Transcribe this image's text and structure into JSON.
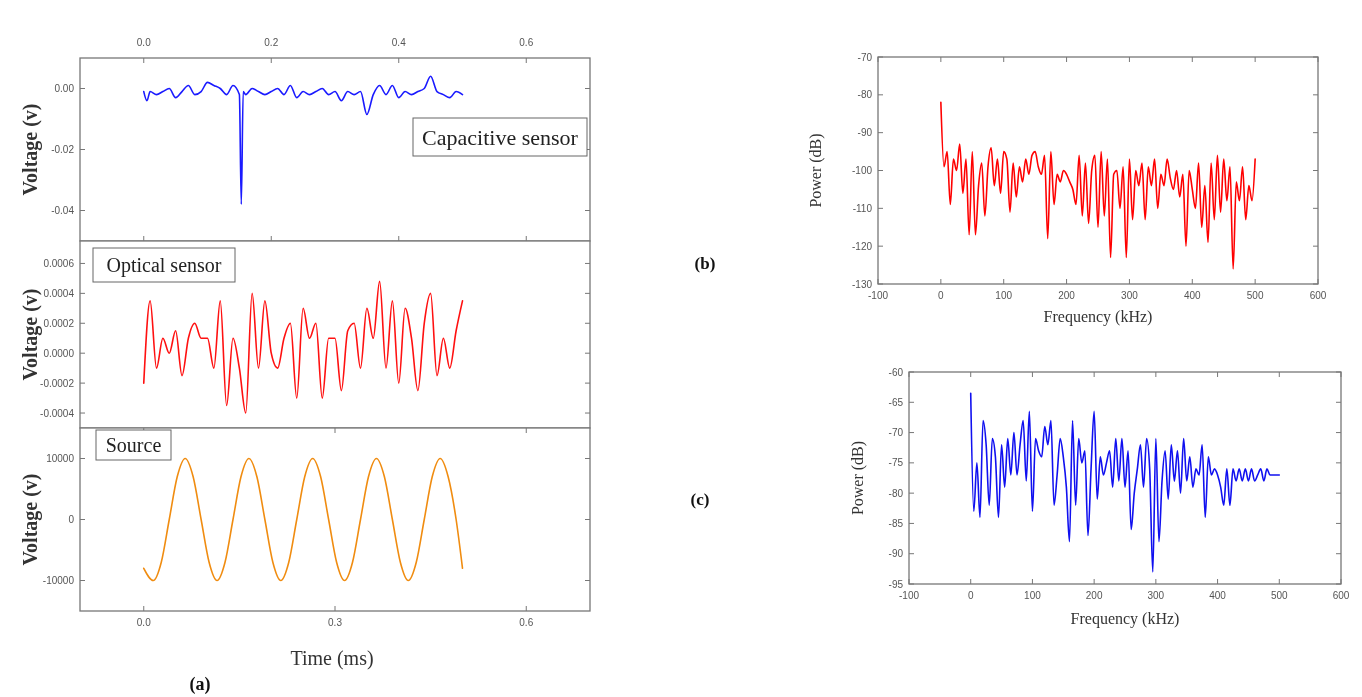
{
  "chart_data": [
    {
      "type": "line",
      "ylabel": "Voltage (v)",
      "xlim": [
        -0.1,
        0.7
      ],
      "ylim": [
        -0.05,
        0.01
      ],
      "tick_labels": "y",
      "x2lim": [
        -0.1,
        0.7
      ],
      "x2ticks": [
        {
          "value": 0,
          "label": "0.0"
        },
        {
          "value": 0.2,
          "label": "0.2"
        },
        {
          "value": 0.4,
          "label": "0.4"
        },
        {
          "value": 0.6,
          "label": "0.6"
        }
      ],
      "yticks": [
        {
          "value": 0,
          "label": "0.00"
        },
        {
          "value": -0.02,
          "label": "-0.02"
        },
        {
          "value": -0.04,
          "label": "-0.04"
        }
      ],
      "annotations": [
        "Capacitive sensor"
      ],
      "series": [
        {
          "color": "#1a1aff",
          "x": [
            0,
            0.005,
            0.01,
            0.02,
            0.03,
            0.04,
            0.05,
            0.06,
            0.07,
            0.08,
            0.09,
            0.1,
            0.11,
            0.12,
            0.13,
            0.14,
            0.15,
            0.153,
            0.156,
            0.16,
            0.17,
            0.18,
            0.19,
            0.2,
            0.21,
            0.22,
            0.23,
            0.24,
            0.25,
            0.26,
            0.27,
            0.28,
            0.29,
            0.3,
            0.31,
            0.32,
            0.33,
            0.34,
            0.35,
            0.36,
            0.37,
            0.38,
            0.39,
            0.4,
            0.41,
            0.42,
            0.43,
            0.44,
            0.45,
            0.46,
            0.47,
            0.48,
            0.49,
            0.5
          ],
          "values": [
            -0.001,
            -0.004,
            -0.001,
            -0.002,
            -0.001,
            0,
            -0.003,
            -0.001,
            0.001,
            -0.002,
            -0.001,
            0.002,
            0.001,
            0,
            -0.002,
            0.001,
            -0.002,
            -0.038,
            -0.001,
            -0.002,
            0,
            -0.001,
            -0.002,
            -0.001,
            0,
            -0.002,
            0.001,
            -0.003,
            -0.001,
            -0.002,
            -0.001,
            0,
            -0.002,
            -0.001,
            -0.004,
            -0.001,
            -0.002,
            -0.001,
            -0.0085,
            -0.002,
            0.001,
            -0.002,
            0.001,
            -0.003,
            -0.001,
            -0.002,
            -0.001,
            0,
            0.004,
            -0.001,
            -0.002,
            -0.003,
            -0.001,
            -0.002
          ]
        }
      ]
    },
    {
      "type": "line",
      "ylabel": "Voltage (v)",
      "xlim": [
        -0.1,
        0.7
      ],
      "ylim": [
        -0.0005,
        0.00075
      ],
      "tick_labels": "y",
      "yticks": [
        {
          "value": 0.0006,
          "label": "0.0006"
        },
        {
          "value": 0.0004,
          "label": "0.0004"
        },
        {
          "value": 0.0002,
          "label": "0.0002"
        },
        {
          "value": 0,
          "label": "0.0000"
        },
        {
          "value": -0.0002,
          "label": "-0.0002"
        },
        {
          "value": -0.0004,
          "label": "-0.0004"
        }
      ],
      "annotations": [
        "Optical sensor"
      ],
      "series": [
        {
          "color": "#ff1010",
          "x": [
            0,
            0.01,
            0.02,
            0.03,
            0.04,
            0.05,
            0.06,
            0.07,
            0.08,
            0.09,
            0.1,
            0.11,
            0.12,
            0.13,
            0.14,
            0.15,
            0.16,
            0.17,
            0.18,
            0.19,
            0.2,
            0.21,
            0.22,
            0.23,
            0.24,
            0.25,
            0.26,
            0.27,
            0.28,
            0.29,
            0.3,
            0.31,
            0.32,
            0.33,
            0.34,
            0.35,
            0.36,
            0.37,
            0.38,
            0.39,
            0.4,
            0.41,
            0.42,
            0.43,
            0.44,
            0.45,
            0.46,
            0.47,
            0.48,
            0.49,
            0.5
          ],
          "values": [
            -0.0002,
            0.00035,
            -0.0001,
            0.0001,
            0,
            0.00015,
            -0.00015,
            0.0001,
            0.0002,
            0.0001,
            0.0001,
            -0.0001,
            0.00035,
            -0.00035,
            0.0001,
            -0.0001,
            -0.0004,
            0.0004,
            -0.0001,
            0.00035,
            0,
            -0.0001,
            0.0001,
            0.0002,
            -0.0003,
            0.0003,
            0.0001,
            0.0002,
            -0.0003,
            0.0001,
            0.0001,
            -0.00025,
            0.00015,
            0.0002,
            -0.0001,
            0.0003,
            0.0001,
            0.00048,
            -0.0001,
            0.00035,
            -0.0002,
            0.0003,
            0.0001,
            -0.00025,
            0.0002,
            0.0004,
            -0.00015,
            0.0001,
            -0.0001,
            0.00015,
            0.00035
          ]
        }
      ]
    },
    {
      "type": "line",
      "ylabel": "Voltage (v)",
      "xlabel": "Time (ms)",
      "xlim": [
        -0.1,
        0.7
      ],
      "ylim": [
        -15000,
        15000
      ],
      "xticks": [
        {
          "value": 0,
          "label": "0.0"
        },
        {
          "value": 0.3,
          "label": "0.3"
        },
        {
          "value": 0.6,
          "label": "0.6"
        }
      ],
      "yticks": [
        10000,
        0,
        -10000
      ],
      "annotations": [
        "Source",
        "(a)"
      ],
      "series": [
        {
          "color": "#f08c10",
          "x": [
            0,
            0.015,
            0.0275,
            0.04,
            0.0525,
            0.065,
            0.0775,
            0.09,
            0.1025,
            0.115,
            0.1275,
            0.14,
            0.1525,
            0.165,
            0.1775,
            0.19,
            0.2025,
            0.215,
            0.2275,
            0.24,
            0.2525,
            0.265,
            0.2775,
            0.29,
            0.3025,
            0.315,
            0.3275,
            0.34,
            0.3525,
            0.365,
            0.3775,
            0.39,
            0.4025,
            0.415,
            0.4275,
            0.44,
            0.4525,
            0.465,
            0.4775,
            0.49,
            0.5
          ],
          "values": [
            -8000,
            -10000,
            -7000,
            0,
            7000,
            10000,
            7000,
            0,
            -7000,
            -10000,
            -7000,
            0,
            7000,
            10000,
            7000,
            0,
            -7000,
            -10000,
            -7000,
            0,
            7000,
            10000,
            7000,
            0,
            -7000,
            -10000,
            -7000,
            0,
            7000,
            10000,
            7000,
            0,
            -7000,
            -10000,
            -7000,
            0,
            7000,
            10000,
            7000,
            0,
            -8000
          ]
        }
      ]
    },
    {
      "type": "line",
      "ylabel": "Power (dB)",
      "xlabel": "Frequency (kHz)",
      "xlim": [
        -100,
        600
      ],
      "ylim": [
        -130,
        -70
      ],
      "xticks": [
        -100,
        0,
        100,
        200,
        300,
        400,
        500,
        600
      ],
      "yticks": [
        -70,
        -80,
        -90,
        -100,
        -110,
        -120,
        -130
      ],
      "annotations": [
        "(b)"
      ],
      "series": [
        {
          "color": "#ff0000",
          "x": [
            0,
            5,
            10,
            15,
            20,
            25,
            30,
            35,
            40,
            45,
            50,
            55,
            60,
            65,
            70,
            75,
            80,
            85,
            90,
            95,
            100,
            105,
            110,
            115,
            120,
            125,
            130,
            135,
            140,
            145,
            150,
            155,
            160,
            165,
            170,
            175,
            180,
            185,
            190,
            195,
            200,
            205,
            210,
            215,
            220,
            225,
            230,
            235,
            240,
            245,
            250,
            255,
            260,
            265,
            270,
            275,
            280,
            285,
            290,
            295,
            300,
            305,
            310,
            315,
            320,
            325,
            330,
            335,
            340,
            345,
            350,
            355,
            360,
            365,
            370,
            375,
            380,
            385,
            390,
            395,
            400,
            405,
            410,
            415,
            420,
            425,
            430,
            435,
            440,
            445,
            450,
            455,
            460,
            465,
            470,
            475,
            480,
            485,
            490,
            495,
            500
          ],
          "values": [
            -82,
            -99,
            -95,
            -109,
            -97,
            -100,
            -93,
            -106,
            -97,
            -117,
            -95,
            -117,
            -104,
            -98,
            -112,
            -99,
            -94,
            -104,
            -97,
            -106,
            -95,
            -97,
            -111,
            -98,
            -107,
            -99,
            -103,
            -97,
            -101,
            -96,
            -95,
            -99,
            -101,
            -96,
            -118,
            -95,
            -109,
            -101,
            -103,
            -100,
            -101,
            -103,
            -105,
            -109,
            -96,
            -112,
            -98,
            -114,
            -100,
            -96,
            -115,
            -95,
            -112,
            -97,
            -123,
            -101,
            -100,
            -110,
            -99,
            -123,
            -97,
            -113,
            -100,
            -104,
            -98,
            -113,
            -99,
            -104,
            -97,
            -110,
            -101,
            -104,
            -97,
            -102,
            -105,
            -100,
            -107,
            -101,
            -120,
            -100,
            -105,
            -110,
            -98,
            -115,
            -104,
            -119,
            -98,
            -113,
            -96,
            -111,
            -97,
            -108,
            -99,
            -126,
            -103,
            -108,
            -99,
            -113,
            -104,
            -108,
            -97
          ]
        }
      ]
    },
    {
      "type": "line",
      "ylabel": "Power (dB)",
      "xlabel": "Frequency (kHz)",
      "xlim": [
        -100,
        600
      ],
      "ylim": [
        -95,
        -60
      ],
      "xticks": [
        -100,
        0,
        100,
        200,
        300,
        400,
        500,
        600
      ],
      "yticks": [
        -60,
        -65,
        -70,
        -75,
        -80,
        -85,
        -90,
        -95
      ],
      "annotations": [
        "(c)"
      ],
      "series": [
        {
          "color": "#1010f0",
          "x": [
            0,
            5,
            10,
            15,
            20,
            25,
            30,
            35,
            40,
            45,
            50,
            55,
            60,
            65,
            70,
            75,
            80,
            85,
            90,
            95,
            100,
            105,
            110,
            115,
            120,
            125,
            130,
            135,
            140,
            145,
            150,
            155,
            160,
            165,
            170,
            175,
            180,
            185,
            190,
            195,
            200,
            205,
            210,
            215,
            220,
            225,
            230,
            235,
            240,
            245,
            250,
            255,
            260,
            265,
            270,
            275,
            280,
            285,
            290,
            295,
            300,
            305,
            310,
            315,
            320,
            325,
            330,
            335,
            340,
            345,
            350,
            355,
            360,
            365,
            370,
            375,
            380,
            385,
            390,
            395,
            400,
            405,
            410,
            415,
            420,
            425,
            430,
            435,
            440,
            445,
            450,
            455,
            460,
            465,
            470,
            475,
            480,
            485,
            490,
            495,
            500
          ],
          "values": [
            -63.5,
            -83,
            -75,
            -84,
            -68,
            -72,
            -82,
            -71,
            -74,
            -84,
            -72,
            -79,
            -71,
            -77,
            -70,
            -77,
            -72,
            -68,
            -78,
            -66.5,
            -83,
            -71,
            -73,
            -74,
            -69,
            -72,
            -68,
            -82,
            -77,
            -71,
            -74,
            -79,
            -88,
            -68,
            -82,
            -71,
            -75,
            -73,
            -87,
            -76,
            -66.5,
            -81,
            -74,
            -77,
            -75,
            -73,
            -79,
            -71,
            -78,
            -71,
            -79,
            -73,
            -86,
            -80,
            -76,
            -72,
            -79,
            -71,
            -76,
            -93,
            -71,
            -88,
            -78,
            -73,
            -81,
            -72,
            -78,
            -73,
            -80,
            -71,
            -78,
            -74,
            -79,
            -76,
            -77,
            -72,
            -84,
            -74,
            -77,
            -76,
            -77,
            -79,
            -82,
            -76,
            -82,
            -76,
            -78,
            -76,
            -78,
            -76,
            -78,
            -76,
            -78,
            -77,
            -76,
            -78,
            -76,
            -77,
            -77,
            -77,
            -77
          ]
        }
      ]
    }
  ]
}
